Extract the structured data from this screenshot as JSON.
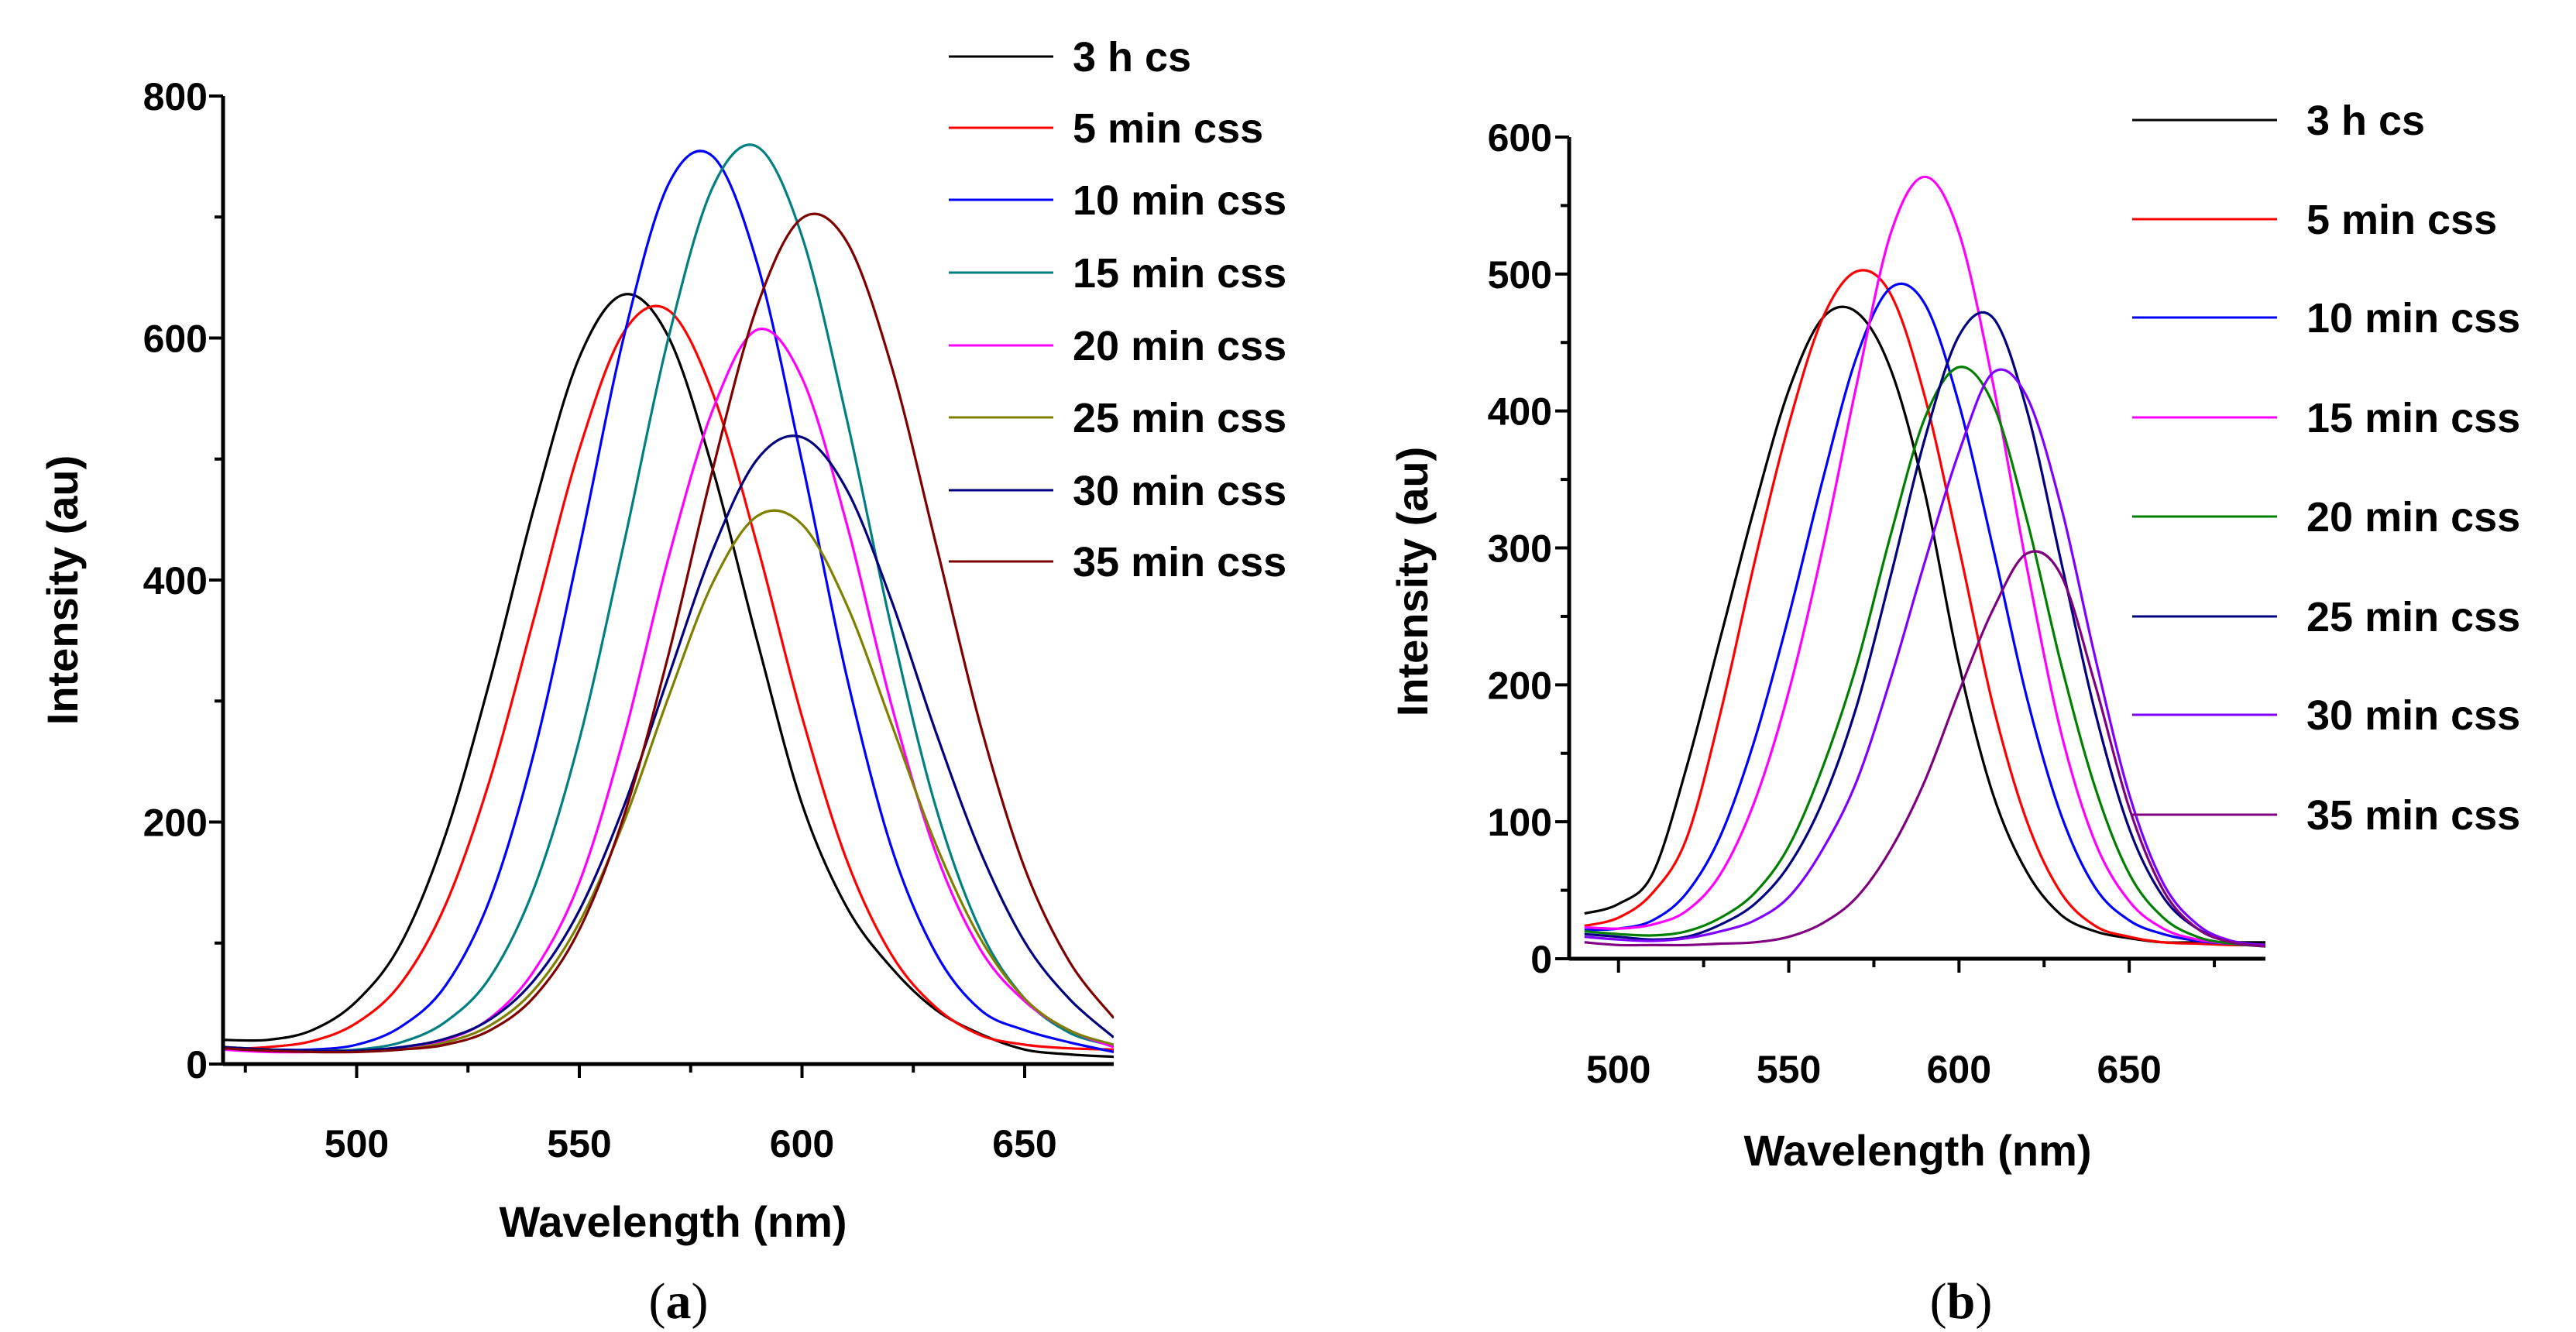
{
  "chart_data": [
    {
      "type": "line",
      "panel_label": "a",
      "xlabel": "Wavelength (nm)",
      "ylabel": "Intensity (au)",
      "xlim": [
        470,
        670
      ],
      "ylim": [
        0,
        800
      ],
      "xticks": [
        500,
        550,
        600,
        650
      ],
      "yticks": [
        0,
        200,
        400,
        600,
        800
      ],
      "grid": false,
      "legend_position": "top-right",
      "x": [
        470,
        480,
        490,
        500,
        510,
        520,
        530,
        540,
        550,
        560,
        570,
        580,
        590,
        600,
        610,
        620,
        630,
        640,
        650,
        660,
        670
      ],
      "series": [
        {
          "name": "3 h cs",
          "color": "#000000",
          "values": [
            20,
            20,
            28,
            52,
            100,
            190,
            318,
            462,
            584,
            636,
            601,
            491,
            349,
            215,
            130,
            80,
            45,
            25,
            12,
            8,
            6
          ]
        },
        {
          "name": "5 min css",
          "color": "#ff0000",
          "values": [
            12,
            14,
            19,
            34,
            67,
            132,
            236,
            371,
            508,
            605,
            623,
            554,
            428,
            287,
            169,
            91,
            47,
            24,
            16,
            13,
            12
          ]
        },
        {
          "name": "10 min css",
          "color": "#0000ff",
          "values": [
            12,
            12,
            12,
            16,
            31,
            65,
            137,
            260,
            426,
            601,
            727,
            750,
            661,
            498,
            321,
            180,
            92,
            45,
            28,
            18,
            10
          ]
        },
        {
          "name": "15 min css",
          "color": "#008080",
          "values": [
            14,
            12,
            11,
            12,
            18,
            35,
            72,
            147,
            268,
            430,
            600,
            725,
            758,
            684,
            534,
            362,
            213,
            111,
            54,
            26,
            15
          ]
        },
        {
          "name": "20 min css",
          "color": "#ff00ff",
          "values": [
            12,
            10,
            10,
            11,
            13,
            20,
            38,
            78,
            150,
            270,
            418,
            541,
            607,
            567,
            447,
            298,
            175,
            95,
            52,
            28,
            14
          ]
        },
        {
          "name": "25 min css",
          "color": "#808000",
          "values": [
            14,
            12,
            11,
            11,
            12,
            18,
            32,
            62,
            117,
            200,
            303,
            398,
            453,
            446,
            380,
            282,
            182,
            104,
            54,
            28,
            16
          ]
        },
        {
          "name": "30 min css",
          "color": "#000080",
          "values": [
            14,
            12,
            11,
            11,
            14,
            21,
            37,
            70,
            127,
            213,
            320,
            425,
            500,
            518,
            475,
            384,
            275,
            176,
            101,
            54,
            22
          ]
        },
        {
          "name": "35 min css",
          "color": "#800000",
          "values": [
            13,
            11,
            10,
            10,
            12,
            16,
            28,
            56,
            111,
            205,
            338,
            492,
            627,
            699,
            680,
            578,
            431,
            281,
            162,
            85,
            38
          ]
        }
      ]
    },
    {
      "type": "line",
      "panel_label": "b",
      "xlabel": "Wavelength (nm)",
      "ylabel": "Intensity (au)",
      "xlim": [
        485.5,
        690
      ],
      "ylim": [
        0,
        600
      ],
      "xticks": [
        500,
        550,
        600,
        650
      ],
      "yticks": [
        0,
        100,
        200,
        300,
        400,
        500,
        600
      ],
      "grid": false,
      "legend_position": "top-right",
      "x": [
        490,
        500,
        510,
        520,
        530,
        540,
        550,
        560,
        570,
        580,
        590,
        600,
        610,
        620,
        630,
        640,
        650,
        660,
        670,
        680,
        690
      ],
      "series": [
        {
          "name": "3 h cs",
          "color": "#000000",
          "values": [
            33,
            40,
            62,
            140,
            235,
            330,
            415,
            468,
            472,
            430,
            340,
            215,
            120,
            63,
            32,
            20,
            15,
            12,
            12,
            12,
            12
          ]
        },
        {
          "name": "5 min css",
          "color": "#ff0000",
          "values": [
            24,
            30,
            48,
            88,
            180,
            290,
            390,
            468,
            502,
            485,
            410,
            300,
            185,
            100,
            48,
            24,
            16,
            12,
            11,
            10,
            10
          ]
        },
        {
          "name": "10 min css",
          "color": "#0000ff",
          "values": [
            21,
            22,
            28,
            48,
            90,
            160,
            250,
            350,
            440,
            490,
            478,
            405,
            300,
            190,
            105,
            52,
            28,
            18,
            13,
            11,
            10
          ]
        },
        {
          "name": "15 min css",
          "color": "#ff00ff",
          "values": [
            23,
            22,
            25,
            35,
            62,
            115,
            195,
            300,
            420,
            530,
            571,
            530,
            420,
            285,
            165,
            85,
            42,
            22,
            14,
            11,
            10
          ]
        },
        {
          "name": "20 min css",
          "color": "#008000",
          "values": [
            20,
            18,
            17,
            20,
            30,
            48,
            82,
            140,
            215,
            310,
            395,
            432,
            405,
            320,
            215,
            125,
            62,
            30,
            16,
            11,
            9
          ]
        },
        {
          "name": "25 min css",
          "color": "#000080",
          "values": [
            18,
            16,
            14,
            16,
            25,
            40,
            68,
            115,
            185,
            280,
            380,
            455,
            468,
            400,
            290,
            180,
            95,
            45,
            22,
            13,
            10
          ]
        },
        {
          "name": "30 min css",
          "color": "#8000ff",
          "values": [
            16,
            14,
            13,
            15,
            20,
            28,
            45,
            80,
            130,
            205,
            290,
            370,
            428,
            410,
            330,
            220,
            120,
            55,
            25,
            13,
            10
          ]
        },
        {
          "name": "35 min css",
          "color": "#800080",
          "values": [
            12,
            10,
            10,
            10,
            11,
            12,
            16,
            26,
            45,
            80,
            130,
            195,
            255,
            296,
            280,
            200,
            110,
            50,
            22,
            12,
            9
          ]
        }
      ]
    }
  ]
}
